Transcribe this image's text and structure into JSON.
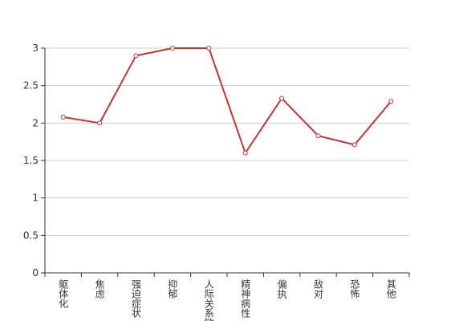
{
  "chart_data": {
    "type": "line",
    "categories": [
      "躯体化",
      "焦虑",
      "强迫症状",
      "抑郁",
      "人际关系敏感",
      "精神病性",
      "偏执",
      "敌对",
      "恐怖",
      "其他"
    ],
    "values": [
      2.08,
      2.0,
      2.9,
      3.0,
      3.0,
      1.6,
      2.33,
      1.83,
      1.71,
      2.29
    ],
    "color": "#c23531",
    "ylim": [
      0,
      3
    ],
    "yticks": [
      0,
      0.5,
      1,
      1.5,
      2,
      2.5,
      3
    ],
    "grid": true
  }
}
